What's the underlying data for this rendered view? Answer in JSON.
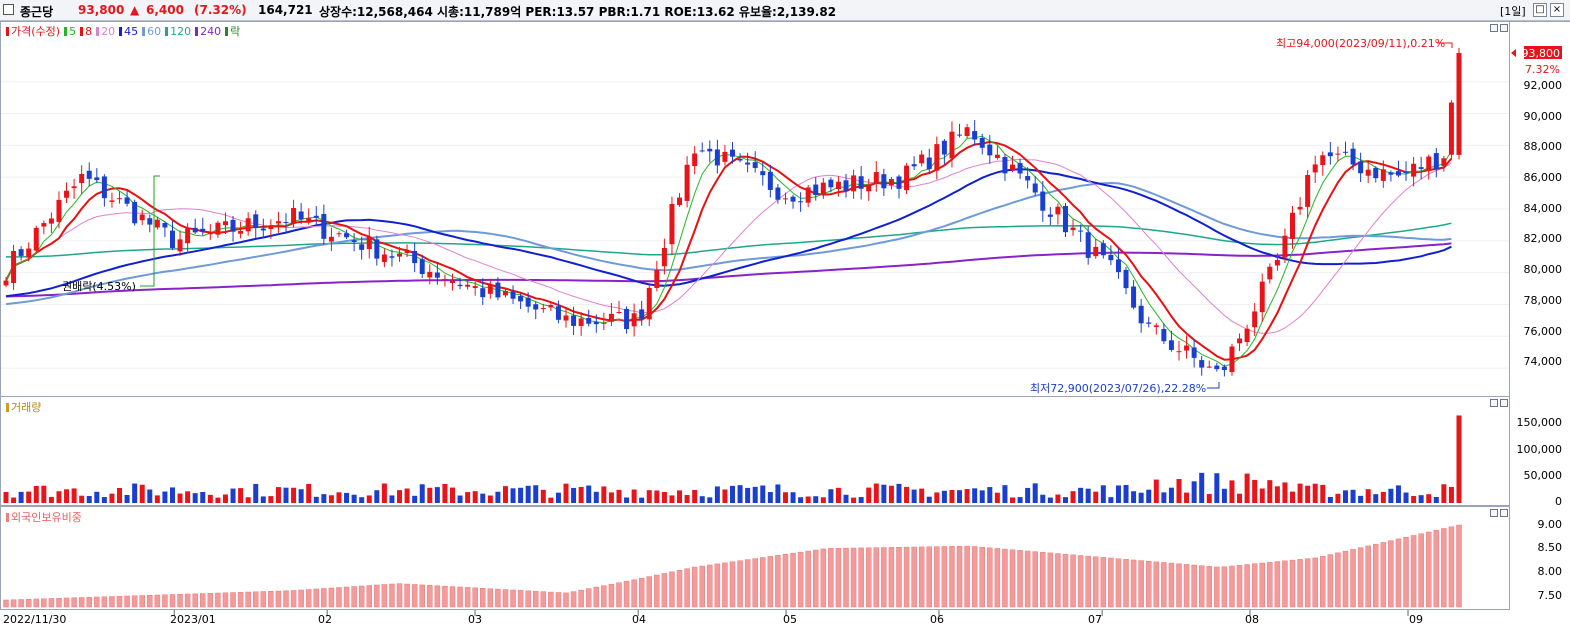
{
  "header": {
    "name": "종근당",
    "price": "93,800",
    "arrow": "▲",
    "change": "6,400",
    "change_pct": "(7.32%)",
    "volume": "164,721",
    "stats": "상장수:12,568,464 시총:11,789억 PER:13.57 PBR:1.71 ROE:13.62 유보율:2,139.82",
    "period": "[1일]",
    "colors": {
      "up": "#e8141a",
      "down": "#1a3fd0"
    }
  },
  "price_panel": {
    "legend": {
      "price_label": "가격(수정)",
      "ma": [
        {
          "label": "5",
          "color": "#22b822"
        },
        {
          "label": "8",
          "color": "#e81010"
        },
        {
          "label": "20",
          "color": "#e080d0"
        },
        {
          "label": "45",
          "color": "#1020d0"
        },
        {
          "label": "60",
          "color": "#6f9ad8"
        },
        {
          "label": "120",
          "color": "#1ea88a"
        },
        {
          "label": "240",
          "color": "#8a22c8"
        }
      ],
      "ex_label": "락"
    },
    "annotations": {
      "high": "최고94,000(2023/09/11),0.21%",
      "low": "최저72,900(2023/07/26),22.28%",
      "ex_rights": "권배락(4.53%)",
      "current_price": "93,800",
      "current_pct": "7.32%"
    },
    "y_ticks": [
      "92,000",
      "90,000",
      "88,000",
      "86,000",
      "84,000",
      "82,000",
      "80,000",
      "78,000",
      "76,000",
      "74,000"
    ]
  },
  "volume_panel": {
    "legend": "거래량",
    "y_ticks": [
      "150,000",
      "100,000",
      "50,000",
      "0"
    ]
  },
  "foreign_panel": {
    "legend": "외국인보유비중",
    "y_ticks": [
      "9.00",
      "8.50",
      "8.00",
      "7.50"
    ]
  },
  "x_axis": {
    "labels": [
      "2022/11/30",
      "2023/01",
      "02",
      "03",
      "04",
      "05",
      "06",
      "07",
      "08",
      "09"
    ]
  },
  "chart_data": {
    "type": "candlestick",
    "period": "daily",
    "date_range": [
      "2022/11/30",
      "2023/09/11"
    ],
    "price_ylim": [
      72500,
      95500
    ],
    "price_keypoints": [
      {
        "date": "2022/11/30",
        "close": 80200
      },
      {
        "date": "2022/12/15",
        "close": 86000
      },
      {
        "date": "2023/01/02",
        "close": 82000
      },
      {
        "date": "2023/01/25",
        "close": 83500
      },
      {
        "date": "2023/02/15",
        "close": 81000
      },
      {
        "date": "2023/03/02",
        "close": 79000
      },
      {
        "date": "2023/03/20",
        "close": 77000
      },
      {
        "date": "2023/04/03",
        "close": 77000
      },
      {
        "date": "2023/04/14",
        "close": 88000
      },
      {
        "date": "2023/05/02",
        "close": 85000
      },
      {
        "date": "2023/05/25",
        "close": 86000
      },
      {
        "date": "2023/06/07",
        "close": 89000
      },
      {
        "date": "2023/06/20",
        "close": 85000
      },
      {
        "date": "2023/07/05",
        "close": 80000
      },
      {
        "date": "2023/07/12",
        "close": 76500
      },
      {
        "date": "2023/07/26",
        "close": 73500
      },
      {
        "date": "2023/08/07",
        "close": 81000
      },
      {
        "date": "2023/08/14",
        "close": 87500
      },
      {
        "date": "2023/08/30",
        "close": 86000
      },
      {
        "date": "2023/09/08",
        "close": 87400
      },
      {
        "date": "2023/09/11",
        "close": 93800
      }
    ],
    "high": {
      "value": 94000,
      "date": "2023/09/11"
    },
    "low": {
      "value": 72900,
      "date": "2023/07/26"
    },
    "volume_ylim": [
      0,
      175000
    ],
    "volume_last": 164721,
    "volume_typical": 25000,
    "foreign_ylim": [
      7.25,
      9.15
    ],
    "foreign_keypoints": [
      {
        "date": "2022/11/30",
        "value": 7.4
      },
      {
        "date": "2023/01/25",
        "value": 7.6
      },
      {
        "date": "2023/02/15",
        "value": 7.75
      },
      {
        "date": "2023/03/20",
        "value": 7.55
      },
      {
        "date": "2023/04/03",
        "value": 7.85
      },
      {
        "date": "2023/04/14",
        "value": 8.1
      },
      {
        "date": "2023/05/10",
        "value": 8.5
      },
      {
        "date": "2023/06/07",
        "value": 8.55
      },
      {
        "date": "2023/07/26",
        "value": 8.1
      },
      {
        "date": "2023/08/14",
        "value": 8.3
      },
      {
        "date": "2023/09/11",
        "value": 9.0
      }
    ]
  }
}
